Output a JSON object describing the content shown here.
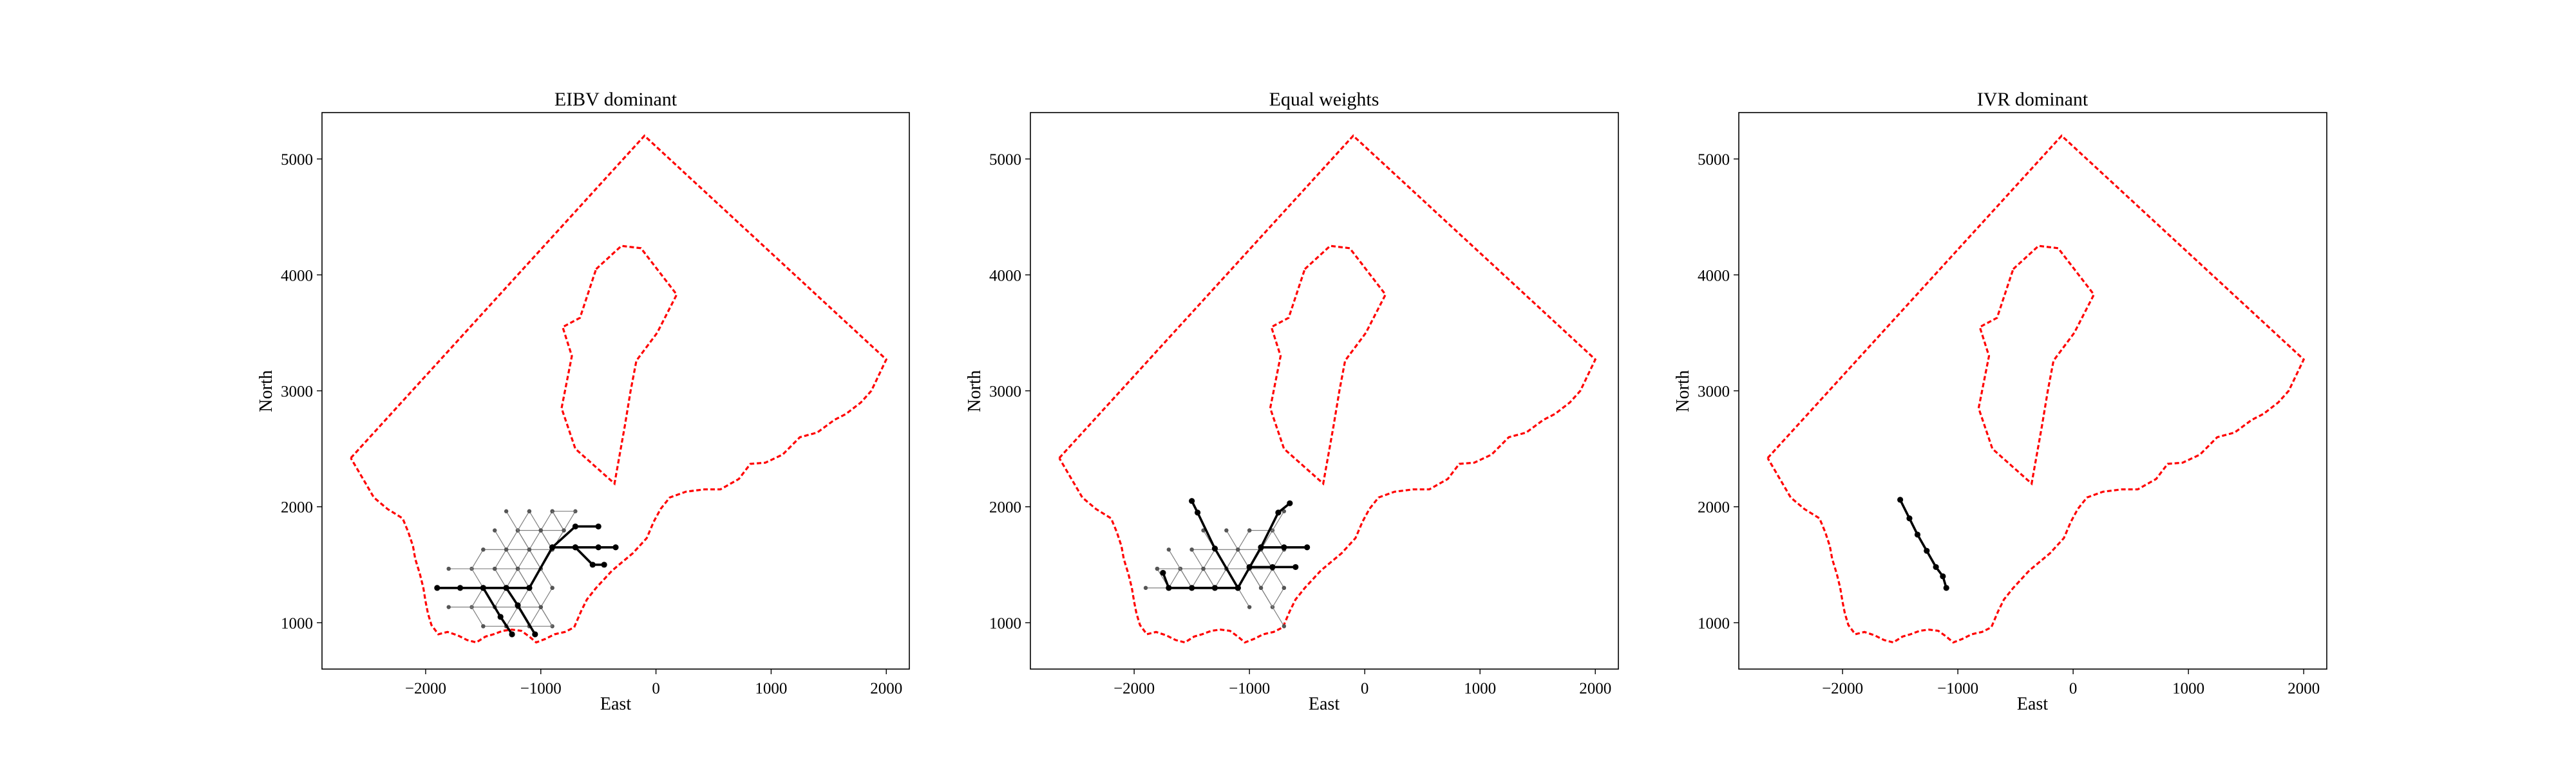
{
  "chart_data": [
    {
      "type": "line",
      "title": "EIBV dominant",
      "xlabel": "East",
      "ylabel": "North",
      "xticks": [
        -2000,
        -1000,
        0,
        1000,
        2000
      ],
      "yticks": [
        1000,
        2000,
        3000,
        4000,
        5000
      ],
      "xlim": [
        -2900,
        2200
      ],
      "ylim": [
        600,
        5400
      ],
      "grid": false,
      "path_family": "tree",
      "boundary_color": "#ff0000",
      "path_color": "#000000",
      "branch_color": "#808080",
      "origin": [
        -1100,
        1300
      ],
      "main_paths": [
        [
          [
            -1100,
            1300
          ],
          [
            -900,
            1650
          ],
          [
            -700,
            1650
          ],
          [
            -500,
            1650
          ],
          [
            -350,
            1650
          ]
        ],
        [
          [
            -1100,
            1300
          ],
          [
            -1300,
            1300
          ],
          [
            -1500,
            1300
          ],
          [
            -1700,
            1300
          ],
          [
            -1900,
            1300
          ]
        ],
        [
          [
            -1300,
            1300
          ],
          [
            -1200,
            1150
          ],
          [
            -1050,
            900
          ]
        ],
        [
          [
            -1500,
            1300
          ],
          [
            -1350,
            1050
          ],
          [
            -1250,
            900
          ]
        ],
        [
          [
            -900,
            1650
          ],
          [
            -700,
            1830
          ],
          [
            -500,
            1830
          ]
        ],
        [
          [
            -700,
            1650
          ],
          [
            -550,
            1500
          ],
          [
            -450,
            1500
          ]
        ]
      ]
    },
    {
      "type": "line",
      "title": "Equal weights",
      "xlabel": "East",
      "ylabel": "North",
      "xticks": [
        -2000,
        -1000,
        0,
        1000,
        2000
      ],
      "yticks": [
        1000,
        2000,
        3000,
        4000,
        5000
      ],
      "xlim": [
        -2900,
        2200
      ],
      "ylim": [
        600,
        5400
      ],
      "grid": false,
      "path_family": "tree",
      "boundary_color": "#ff0000",
      "path_color": "#000000",
      "branch_color": "#808080",
      "origin": [
        -1100,
        1300
      ],
      "main_paths": [
        [
          [
            -1100,
            1300
          ],
          [
            -900,
            1650
          ],
          [
            -750,
            1950
          ],
          [
            -650,
            2030
          ]
        ],
        [
          [
            -1100,
            1300
          ],
          [
            -1300,
            1300
          ],
          [
            -1500,
            1300
          ],
          [
            -1700,
            1300
          ],
          [
            -1750,
            1430
          ]
        ],
        [
          [
            -1100,
            1300
          ],
          [
            -1300,
            1640
          ],
          [
            -1450,
            1950
          ],
          [
            -1500,
            2050
          ]
        ],
        [
          [
            -900,
            1650
          ],
          [
            -700,
            1650
          ],
          [
            -500,
            1650
          ]
        ],
        [
          [
            -1000,
            1480
          ],
          [
            -800,
            1480
          ],
          [
            -600,
            1480
          ]
        ]
      ]
    },
    {
      "type": "line",
      "title": "IVR dominant",
      "xlabel": "East",
      "ylabel": "North",
      "xticks": [
        -2000,
        -1000,
        0,
        1000,
        2000
      ],
      "yticks": [
        1000,
        2000,
        3000,
        4000,
        5000
      ],
      "xlim": [
        -2900,
        2200
      ],
      "ylim": [
        600,
        5400
      ],
      "grid": false,
      "path_family": "single",
      "boundary_color": "#ff0000",
      "path_color": "#000000",
      "branch_color": "#808080",
      "origin": [
        -1100,
        1300
      ],
      "main_paths": [
        [
          [
            -1500,
            2060
          ],
          [
            -1420,
            1900
          ],
          [
            -1350,
            1760
          ],
          [
            -1270,
            1620
          ],
          [
            -1190,
            1480
          ],
          [
            -1130,
            1400
          ],
          [
            -1100,
            1300
          ]
        ]
      ]
    }
  ],
  "outer_boundary": [
    [
      -2650,
      2420
    ],
    [
      -100,
      5200
    ],
    [
      2000,
      3270
    ],
    [
      1870,
      3000
    ],
    [
      1780,
      2900
    ],
    [
      1650,
      2800
    ],
    [
      1550,
      2750
    ],
    [
      1400,
      2640
    ],
    [
      1250,
      2600
    ],
    [
      1100,
      2450
    ],
    [
      950,
      2380
    ],
    [
      820,
      2370
    ],
    [
      720,
      2240
    ],
    [
      560,
      2150
    ],
    [
      420,
      2150
    ],
    [
      260,
      2130
    ],
    [
      120,
      2080
    ],
    [
      40,
      1980
    ],
    [
      -20,
      1870
    ],
    [
      -80,
      1730
    ],
    [
      -200,
      1600
    ],
    [
      -380,
      1450
    ],
    [
      -520,
      1300
    ],
    [
      -600,
      1200
    ],
    [
      -650,
      1100
    ],
    [
      -710,
      960
    ],
    [
      -790,
      920
    ],
    [
      -880,
      900
    ],
    [
      -960,
      860
    ],
    [
      -1040,
      830
    ],
    [
      -1100,
      880
    ],
    [
      -1170,
      930
    ],
    [
      -1250,
      940
    ],
    [
      -1330,
      930
    ],
    [
      -1410,
      900
    ],
    [
      -1480,
      880
    ],
    [
      -1560,
      830
    ],
    [
      -1640,
      850
    ],
    [
      -1720,
      890
    ],
    [
      -1810,
      920
    ],
    [
      -1890,
      900
    ],
    [
      -1950,
      980
    ],
    [
      -1980,
      1080
    ],
    [
      -2000,
      1180
    ],
    [
      -2020,
      1300
    ],
    [
      -2050,
      1420
    ],
    [
      -2090,
      1550
    ],
    [
      -2110,
      1660
    ],
    [
      -2150,
      1780
    ],
    [
      -2200,
      1900
    ],
    [
      -2330,
      1980
    ],
    [
      -2450,
      2080
    ],
    [
      -2520,
      2200
    ],
    [
      -2650,
      2420
    ]
  ],
  "inner_boundary": [
    [
      -520,
      4050
    ],
    [
      -300,
      4250
    ],
    [
      -130,
      4230
    ],
    [
      180,
      3830
    ],
    [
      10,
      3500
    ],
    [
      -170,
      3260
    ],
    [
      -220,
      3000
    ],
    [
      -270,
      2700
    ],
    [
      -360,
      2200
    ],
    [
      -700,
      2500
    ],
    [
      -820,
      2850
    ],
    [
      -730,
      3300
    ],
    [
      -810,
      3550
    ],
    [
      -660,
      3630
    ],
    [
      -520,
      4050
    ]
  ]
}
